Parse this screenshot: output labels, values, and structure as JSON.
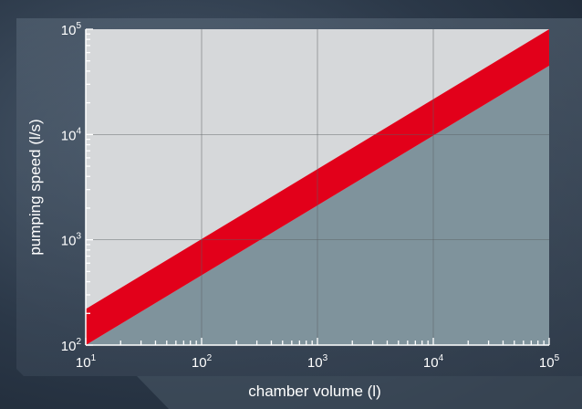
{
  "chart_data": {
    "type": "area",
    "x_scale": "log",
    "y_scale": "log",
    "xlabel": "chamber volume (l)",
    "ylabel": "pumping speed (l/s)",
    "xlim": [
      10,
      100000
    ],
    "ylim": [
      100,
      100000
    ],
    "x_ticks": [
      {
        "base": "10",
        "exp": "1",
        "value": 10
      },
      {
        "base": "10",
        "exp": "2",
        "value": 100
      },
      {
        "base": "10",
        "exp": "3",
        "value": 1000
      },
      {
        "base": "10",
        "exp": "4",
        "value": 10000
      },
      {
        "base": "10",
        "exp": "5",
        "value": 100000
      }
    ],
    "y_ticks": [
      {
        "base": "10",
        "exp": "2",
        "value": 100
      },
      {
        "base": "10",
        "exp": "3",
        "value": 1000
      },
      {
        "base": "10",
        "exp": "4",
        "value": 10000
      },
      {
        "base": "10",
        "exp": "5",
        "value": 100000
      }
    ],
    "grid": true,
    "band": {
      "color": "#e2001a",
      "upper": {
        "x": [
          10,
          100000
        ],
        "y": [
          220,
          100000
        ]
      },
      "lower": {
        "x": [
          10,
          100000
        ],
        "y": [
          100,
          45000
        ]
      }
    },
    "colors": {
      "region_above": "#d6d8da",
      "region_below": "#7f939c",
      "band": "#e2001a",
      "grid": "#5a5f63",
      "text": "#ffffff"
    }
  }
}
